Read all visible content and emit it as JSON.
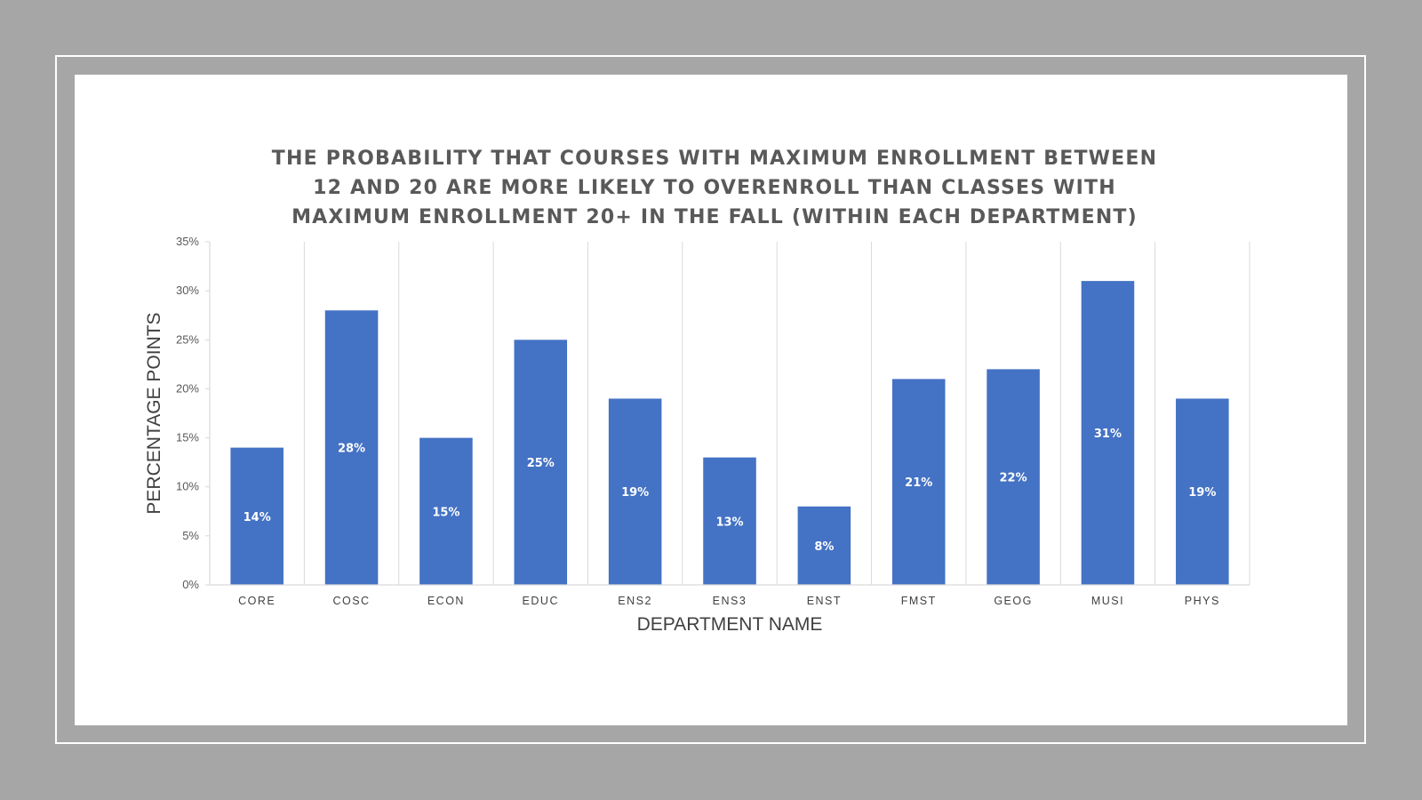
{
  "chart_data": {
    "type": "bar",
    "title": "THE PROBABILITY THAT COURSES WITH MAXIMUM ENROLLMENT BETWEEN 12 AND 20 ARE MORE LIKELY TO OVERENROLL THAN CLASSES WITH MAXIMUM ENROLLMENT 20+ IN THE FALL (WITHIN EACH DEPARTMENT)",
    "xlabel": "DEPARTMENT NAME",
    "ylabel": "PERCENTAGE POINTS",
    "categories": [
      "CORE",
      "COSC",
      "ECON",
      "EDUC",
      "ENS2",
      "ENS3",
      "ENST",
      "FMST",
      "GEOG",
      "MUSI",
      "PHYS"
    ],
    "values": [
      14,
      28,
      15,
      25,
      19,
      13,
      8,
      21,
      22,
      31,
      19
    ],
    "data_labels": [
      "14%",
      "28%",
      "15%",
      "25%",
      "19%",
      "13%",
      "8%",
      "21%",
      "22%",
      "31%",
      "19%"
    ],
    "ylim": [
      0,
      35
    ],
    "yticks": [
      0,
      5,
      10,
      15,
      20,
      25,
      30,
      35
    ],
    "ytick_labels": [
      "0%",
      "5%",
      "10%",
      "15%",
      "20%",
      "25%",
      "30%",
      "35%"
    ],
    "bar_color": "#4472c4",
    "grid": "vertical category separators",
    "legend": "none"
  }
}
